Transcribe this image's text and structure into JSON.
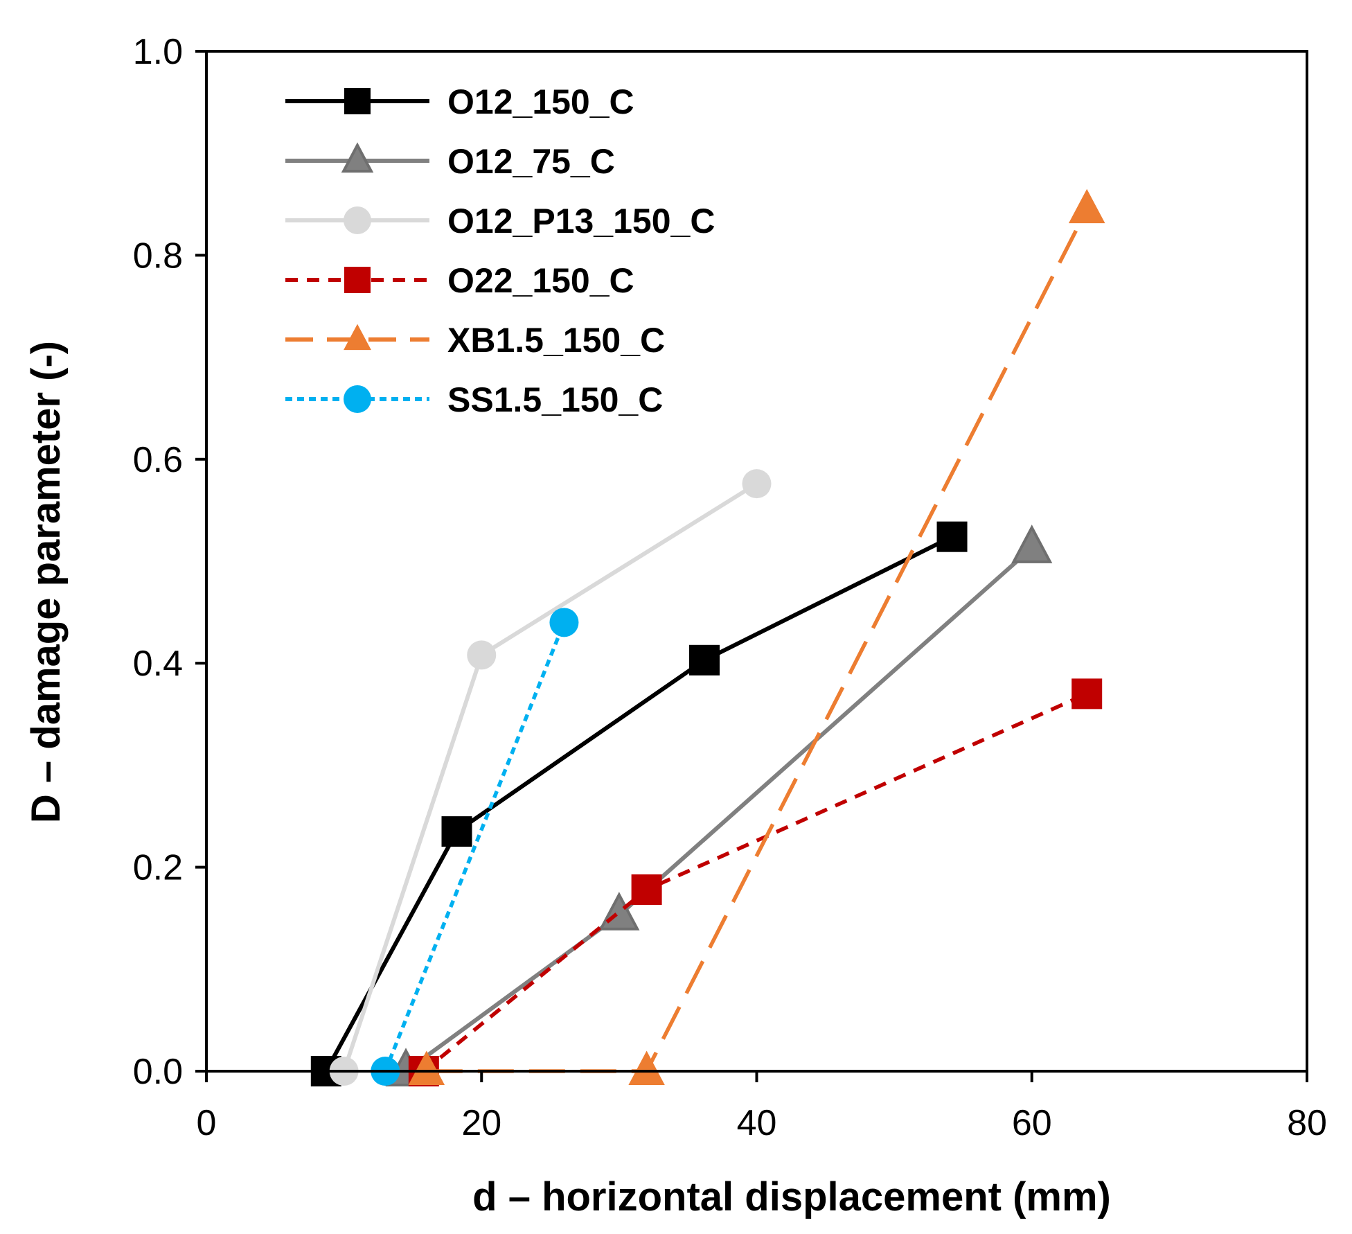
{
  "chart_data": {
    "type": "line",
    "title": "",
    "xlabel": "d – horizontal displacement (mm)",
    "ylabel": "D – damage parameter (-)",
    "xlim": [
      0,
      80
    ],
    "ylim": [
      0,
      1.0
    ],
    "xticks": [
      "0",
      "20",
      "40",
      "60",
      "80"
    ],
    "yticks": [
      "0.0",
      "0.2",
      "0.4",
      "0.6",
      "0.8",
      "1.0"
    ],
    "xtick_values": [
      0,
      20,
      40,
      60,
      80
    ],
    "ytick_values": [
      0,
      0.2,
      0.4,
      0.6,
      0.8,
      1.0
    ],
    "grid": false,
    "legend_position": "top-left",
    "series": [
      {
        "name": "O12_150_C",
        "color": "#000000",
        "marker": "square",
        "line": "solid",
        "x": [
          8.7,
          18.2,
          36.2,
          54.2
        ],
        "y": [
          0.0,
          0.235,
          0.403,
          0.524
        ]
      },
      {
        "name": "O12_75_C",
        "color": "#808080",
        "marker": "triangle",
        "line": "solid",
        "x": [
          14.5,
          30.0,
          60.0
        ],
        "y": [
          0.0,
          0.153,
          0.513
        ]
      },
      {
        "name": "O12_P13_150_C",
        "color": "#d9d9d9",
        "marker": "circle",
        "line": "solid",
        "x": [
          10.0,
          20.0,
          40.0
        ],
        "y": [
          0.0,
          0.408,
          0.576
        ]
      },
      {
        "name": "O22_150_C",
        "color": "#c00000",
        "marker": "square",
        "line": "dash",
        "x": [
          15.8,
          32.0,
          64.0
        ],
        "y": [
          0.0,
          0.178,
          0.37
        ]
      },
      {
        "name": "XB1.5_150_C",
        "color": "#ed7d31",
        "marker": "triangle",
        "line": "longdash",
        "x": [
          16.0,
          32.0,
          64.0
        ],
        "y": [
          0.0,
          0.0,
          0.845
        ]
      },
      {
        "name": "SS1.5_150_C",
        "color": "#00b0f0",
        "marker": "circle",
        "line": "dot",
        "x": [
          13.0,
          26.0
        ],
        "y": [
          0.0,
          0.44
        ]
      }
    ]
  }
}
